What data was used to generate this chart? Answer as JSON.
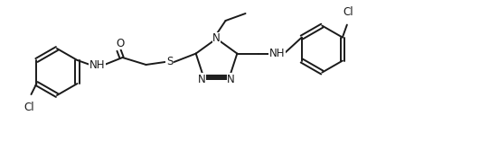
{
  "bg_color": "#ffffff",
  "line_color": "#1a1a1a",
  "line_width": 1.4,
  "font_size": 8.5,
  "figsize": [
    5.31,
    1.68
  ],
  "dpi": 100,
  "xlim": [
    0,
    531
  ],
  "ylim": [
    0,
    168
  ]
}
